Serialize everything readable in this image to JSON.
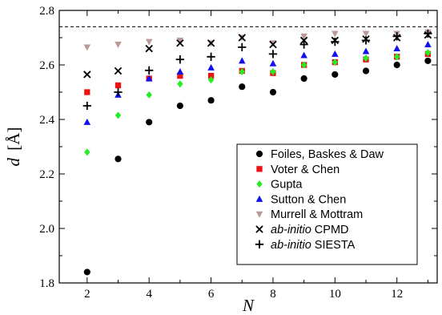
{
  "chart_data": {
    "type": "scatter",
    "title": "",
    "xlabel": "N",
    "ylabel": {
      "var": "d",
      "unit": "[Å]"
    },
    "xlim": [
      1.1,
      13.3
    ],
    "ylim": [
      1.8,
      2.8
    ],
    "xticks": [
      2,
      4,
      6,
      8,
      10,
      12
    ],
    "yticks": [
      1.8,
      2.0,
      2.2,
      2.4,
      2.6,
      2.8
    ],
    "xtick_labels": [
      "2",
      "4",
      "6",
      "8",
      "10",
      "12"
    ],
    "ytick_labels": [
      "1.8",
      "2.0",
      "2.2",
      "2.4",
      "2.6",
      "2.8"
    ],
    "reference_line": {
      "y": 2.74,
      "style": "dashed"
    },
    "grid": false,
    "legend_position": "lower-right",
    "series": [
      {
        "name": "Foiles, Baskes & Daw",
        "marker": "circle",
        "color": "#000000",
        "x": [
          2,
          3,
          4,
          5,
          6,
          7,
          8,
          9,
          10,
          11,
          12,
          13
        ],
        "y": [
          1.84,
          2.255,
          2.39,
          2.45,
          2.47,
          2.52,
          2.5,
          2.55,
          2.565,
          2.578,
          2.6,
          2.615
        ]
      },
      {
        "name": "Voter & Chen",
        "marker": "square",
        "color": "#ee1111",
        "x": [
          2,
          3,
          4,
          5,
          6,
          7,
          8,
          9,
          10,
          11,
          12,
          13
        ],
        "y": [
          2.5,
          2.525,
          2.55,
          2.56,
          2.56,
          2.578,
          2.57,
          2.6,
          2.61,
          2.62,
          2.63,
          2.64
        ]
      },
      {
        "name": "Gupta",
        "marker": "diamond",
        "color": "#22ee22",
        "x": [
          2,
          3,
          4,
          5,
          6,
          7,
          8,
          9,
          10,
          11,
          12,
          13
        ],
        "y": [
          2.28,
          2.415,
          2.49,
          2.53,
          2.545,
          2.575,
          2.575,
          2.6,
          2.61,
          2.625,
          2.63,
          2.645
        ]
      },
      {
        "name": "Sutton & Chen",
        "marker": "triangle-up",
        "color": "#1111ee",
        "x": [
          2,
          3,
          4,
          5,
          6,
          7,
          8,
          9,
          10,
          11,
          12,
          13
        ],
        "y": [
          2.39,
          2.49,
          2.55,
          2.575,
          2.59,
          2.615,
          2.605,
          2.635,
          2.64,
          2.65,
          2.66,
          2.675
        ]
      },
      {
        "name": "Murrell & Mottram",
        "marker": "triangle-down",
        "color": "#bb9999",
        "x": [
          2,
          3,
          4,
          5,
          6,
          7,
          8,
          9,
          10,
          11,
          12,
          13
        ],
        "y": [
          2.665,
          2.675,
          2.685,
          2.69,
          2.68,
          2.7,
          2.68,
          2.705,
          2.715,
          2.715,
          2.715,
          2.72
        ]
      },
      {
        "name": "ab-initio CPMD",
        "marker": "x",
        "color": "#000000",
        "x": [
          2,
          3,
          4,
          5,
          6,
          7,
          8,
          9,
          10,
          11,
          12,
          13
        ],
        "y": [
          2.565,
          2.578,
          2.66,
          2.68,
          2.68,
          2.7,
          2.675,
          2.69,
          2.69,
          2.695,
          2.7,
          2.71
        ]
      },
      {
        "name": "ab-initio SIESTA",
        "marker": "plus",
        "color": "#000000",
        "x": [
          2,
          3,
          4,
          5,
          6,
          7,
          8,
          9,
          10,
          11,
          12,
          13
        ],
        "y": [
          2.45,
          2.5,
          2.58,
          2.62,
          2.63,
          2.665,
          2.64,
          2.675,
          2.685,
          2.69,
          2.705,
          2.715
        ]
      }
    ],
    "legend": [
      {
        "prefix": "",
        "rest": "Foiles, Baskes & Daw"
      },
      {
        "prefix": "",
        "rest": "Voter & Chen"
      },
      {
        "prefix": "",
        "rest": "Gupta"
      },
      {
        "prefix": "",
        "rest": "Sutton & Chen"
      },
      {
        "prefix": "",
        "rest": "Murrell & Mottram"
      },
      {
        "prefix": "ab-initio",
        "rest": " CPMD"
      },
      {
        "prefix": "ab-initio",
        "rest": " SIESTA"
      }
    ]
  }
}
